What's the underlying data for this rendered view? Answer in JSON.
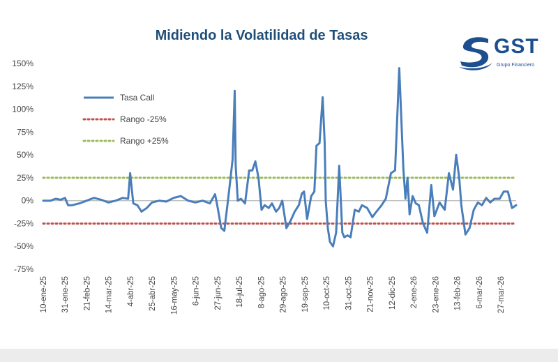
{
  "colors": {
    "title": "#1f4e79",
    "series": "#4a7ebb",
    "low": "#c0504d",
    "high": "#9bbb59",
    "zero": "#bfbfbf"
  },
  "logo": {
    "name": "GST",
    "subtitle": "Grupo Financiero",
    "icon": "gst-swoosh-logo"
  },
  "chart_data": {
    "type": "line",
    "title": "Midiendo la Volatilidad de Tasas",
    "xlabel": "",
    "ylabel": "",
    "ylim": [
      -0.75,
      1.5
    ],
    "y_ticks": [
      1.5,
      1.25,
      1.0,
      0.75,
      0.5,
      0.25,
      0,
      -0.25,
      -0.5,
      -0.75
    ],
    "y_tick_labels": [
      "150%",
      "125%",
      "100%",
      "75%",
      "50%",
      "25%",
      "0%",
      "-25%",
      "-50%",
      "-75%"
    ],
    "x_tick_labels": [
      "10-ene-25",
      "31-ene-25",
      "21-feb-25",
      "14-mar-25",
      "4-abr-25",
      "25-abr-25",
      "16-may-25",
      "6-jun-25",
      "27-jun-25",
      "18-jul-25",
      "8-ago-25",
      "29-ago-25",
      "19-sep-25",
      "10-oct-25",
      "31-oct-25",
      "21-nov-25",
      "12-dic-25",
      "2-ene-26",
      "23-ene-26",
      "13-feb-26",
      "6-mar-26",
      "27-mar-26"
    ],
    "legend": [
      "Tasa Call",
      "Rango -25%",
      "Rango +25%"
    ],
    "legend_position": "top-left",
    "grid": false,
    "reference_lines": [
      {
        "name": "Rango -25%",
        "value": -0.25
      },
      {
        "name": "Rango +25%",
        "value": 0.25
      }
    ],
    "series": [
      {
        "name": "Tasa Call",
        "x": [
          "2025-01-10",
          "2025-01-17",
          "2025-01-22",
          "2025-01-27",
          "2025-01-31",
          "2025-02-03",
          "2025-02-07",
          "2025-02-14",
          "2025-02-21",
          "2025-02-28",
          "2025-03-07",
          "2025-03-14",
          "2025-03-21",
          "2025-03-28",
          "2025-04-02",
          "2025-04-04",
          "2025-04-07",
          "2025-04-11",
          "2025-04-15",
          "2025-04-20",
          "2025-04-25",
          "2025-05-02",
          "2025-05-09",
          "2025-05-16",
          "2025-05-23",
          "2025-05-30",
          "2025-06-06",
          "2025-06-13",
          "2025-06-20",
          "2025-06-25",
          "2025-06-27",
          "2025-07-01",
          "2025-07-04",
          "2025-07-08",
          "2025-07-12",
          "2025-07-14",
          "2025-07-15",
          "2025-07-17",
          "2025-07-20",
          "2025-07-24",
          "2025-07-28",
          "2025-07-31",
          "2025-08-03",
          "2025-08-06",
          "2025-08-09",
          "2025-08-12",
          "2025-08-16",
          "2025-08-19",
          "2025-08-23",
          "2025-08-26",
          "2025-08-29",
          "2025-09-02",
          "2025-09-06",
          "2025-09-10",
          "2025-09-14",
          "2025-09-17",
          "2025-09-19",
          "2025-09-22",
          "2025-09-26",
          "2025-09-29",
          "2025-10-01",
          "2025-10-04",
          "2025-10-07",
          "2025-10-09",
          "2025-10-10",
          "2025-10-12",
          "2025-10-14",
          "2025-10-17",
          "2025-10-20",
          "2025-10-23",
          "2025-10-26",
          "2025-10-28",
          "2025-10-31",
          "2025-11-03",
          "2025-11-07",
          "2025-11-11",
          "2025-11-14",
          "2025-11-19",
          "2025-11-24",
          "2025-11-28",
          "2025-12-03",
          "2025-12-07",
          "2025-12-12",
          "2025-12-16",
          "2025-12-20",
          "2025-12-24",
          "2025-12-26",
          "2025-12-28",
          "2025-12-30",
          "2026-01-02",
          "2026-01-05",
          "2026-01-08",
          "2026-01-12",
          "2026-01-16",
          "2026-01-20",
          "2026-01-23",
          "2026-01-28",
          "2026-02-02",
          "2026-02-06",
          "2026-02-10",
          "2026-02-13",
          "2026-02-16",
          "2026-02-18",
          "2026-02-22",
          "2026-02-26",
          "2026-03-02",
          "2026-03-06",
          "2026-03-10",
          "2026-03-14",
          "2026-03-18",
          "2026-03-22",
          "2026-03-27",
          "2026-03-31",
          "2026-04-04",
          "2026-04-08",
          "2026-04-12"
        ],
        "values": [
          0.0,
          0.0,
          0.02,
          0.01,
          0.03,
          -0.05,
          -0.05,
          -0.03,
          0.0,
          0.03,
          0.01,
          -0.02,
          0.0,
          0.03,
          0.02,
          0.3,
          -0.03,
          -0.05,
          -0.12,
          -0.08,
          -0.02,
          0.0,
          -0.01,
          0.03,
          0.05,
          0.0,
          -0.02,
          0.0,
          -0.03,
          0.07,
          -0.04,
          -0.3,
          -0.33,
          0.05,
          0.45,
          1.2,
          0.38,
          0.0,
          0.02,
          -0.03,
          0.33,
          0.33,
          0.43,
          0.25,
          -0.1,
          -0.05,
          -0.08,
          -0.03,
          -0.12,
          -0.08,
          0.0,
          -0.3,
          -0.22,
          -0.12,
          -0.05,
          0.08,
          0.1,
          -0.2,
          0.05,
          0.1,
          0.6,
          0.63,
          1.13,
          0.63,
          0.0,
          -0.3,
          -0.45,
          -0.5,
          -0.35,
          0.38,
          -0.35,
          -0.4,
          -0.38,
          -0.4,
          -0.1,
          -0.12,
          -0.05,
          -0.08,
          -0.18,
          -0.12,
          -0.05,
          0.02,
          0.3,
          0.33,
          1.45,
          0.35,
          0.02,
          0.25,
          -0.15,
          0.05,
          -0.03,
          -0.05,
          -0.25,
          -0.35,
          0.17,
          -0.17,
          -0.02,
          -0.1,
          0.3,
          0.12,
          0.5,
          0.25,
          -0.05,
          -0.37,
          -0.3,
          -0.1,
          -0.02,
          -0.05,
          0.03,
          -0.02,
          0.02,
          0.02,
          0.1,
          0.1,
          -0.08,
          -0.05
        ]
      }
    ]
  }
}
